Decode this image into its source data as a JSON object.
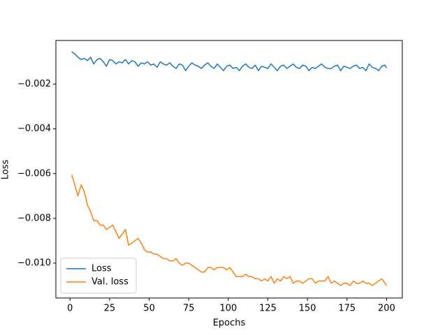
{
  "chart_data": {
    "type": "line",
    "xlabel": "Epochs",
    "ylabel": "Loss",
    "x": [
      1,
      3,
      5,
      7,
      9,
      11,
      13,
      15,
      17,
      19,
      21,
      23,
      25,
      27,
      29,
      31,
      33,
      35,
      37,
      39,
      41,
      43,
      45,
      47,
      49,
      51,
      53,
      55,
      57,
      59,
      61,
      63,
      65,
      67,
      69,
      71,
      73,
      75,
      77,
      79,
      81,
      83,
      85,
      87,
      89,
      91,
      93,
      95,
      97,
      99,
      101,
      103,
      105,
      107,
      109,
      111,
      113,
      115,
      117,
      119,
      121,
      123,
      125,
      127,
      129,
      131,
      133,
      135,
      137,
      139,
      141,
      143,
      145,
      147,
      149,
      151,
      153,
      155,
      157,
      159,
      161,
      163,
      165,
      167,
      169,
      171,
      173,
      175,
      177,
      179,
      181,
      183,
      185,
      187,
      189,
      191,
      193,
      195,
      197,
      199,
      200
    ],
    "series": [
      {
        "name": "Loss",
        "color": "#1f77b4",
        "values": [
          -0.00055,
          -0.00065,
          -0.0008,
          -0.0009,
          -0.00085,
          -0.00095,
          -0.0008,
          -0.0011,
          -0.0009,
          -0.00085,
          -0.001,
          -0.0012,
          -0.0009,
          -0.00095,
          -0.0011,
          -0.001,
          -0.00105,
          -0.0009,
          -0.0011,
          -0.00095,
          -0.001,
          -0.0012,
          -0.00105,
          -0.0011,
          -0.001,
          -0.00115,
          -0.0011,
          -0.00125,
          -0.001,
          -0.0011,
          -0.00115,
          -0.00105,
          -0.0012,
          -0.0013,
          -0.0011,
          -0.00115,
          -0.0014,
          -0.0012,
          -0.00105,
          -0.00115,
          -0.0012,
          -0.0013,
          -0.00115,
          -0.00105,
          -0.0012,
          -0.0013,
          -0.0011,
          -0.00125,
          -0.0014,
          -0.0012,
          -0.00115,
          -0.0013,
          -0.00125,
          -0.0014,
          -0.0012,
          -0.0011,
          -0.00125,
          -0.0013,
          -0.00115,
          -0.0014,
          -0.0012,
          -0.00125,
          -0.0013,
          -0.0011,
          -0.00125,
          -0.0014,
          -0.0012,
          -0.00115,
          -0.0013,
          -0.0012,
          -0.0011,
          -0.00125,
          -0.0013,
          -0.00115,
          -0.0012,
          -0.0014,
          -0.00125,
          -0.0013,
          -0.0012,
          -0.0011,
          -0.00125,
          -0.0013,
          -0.0013,
          -0.0012,
          -0.00115,
          -0.0014,
          -0.0012,
          -0.00125,
          -0.0013,
          -0.0012,
          -0.00115,
          -0.0013,
          -0.00125,
          -0.0014,
          -0.0011,
          -0.00125,
          -0.0013,
          -0.0014,
          -0.0012,
          -0.00115,
          -0.00128
        ]
      },
      {
        "name": "Val. loss",
        "color": "#ff7f0e",
        "values": [
          -0.00605,
          -0.0065,
          -0.007,
          -0.0065,
          -0.0068,
          -0.0074,
          -0.0077,
          -0.0081,
          -0.0081,
          -0.0083,
          -0.0083,
          -0.0085,
          -0.0084,
          -0.0083,
          -0.0086,
          -0.0089,
          -0.0087,
          -0.0085,
          -0.0092,
          -0.0091,
          -0.009,
          -0.0089,
          -0.0091,
          -0.0094,
          -0.0095,
          -0.0095,
          -0.0096,
          -0.0096,
          -0.0097,
          -0.0098,
          -0.0098,
          -0.0099,
          -0.0099,
          -0.0098,
          -0.01,
          -0.0101,
          -0.01,
          -0.01,
          -0.0101,
          -0.0102,
          -0.0103,
          -0.0104,
          -0.0104,
          -0.0102,
          -0.0102,
          -0.0103,
          -0.0102,
          -0.0102,
          -0.0102,
          -0.0103,
          -0.0102,
          -0.0104,
          -0.0106,
          -0.0106,
          -0.0106,
          -0.0105,
          -0.0106,
          -0.0106,
          -0.0107,
          -0.0107,
          -0.0108,
          -0.0107,
          -0.0108,
          -0.0106,
          -0.0109,
          -0.0107,
          -0.0108,
          -0.0106,
          -0.0107,
          -0.0106,
          -0.0109,
          -0.0108,
          -0.0108,
          -0.0109,
          -0.0108,
          -0.0107,
          -0.0107,
          -0.0109,
          -0.0108,
          -0.0108,
          -0.0108,
          -0.0106,
          -0.0109,
          -0.0108,
          -0.0109,
          -0.011,
          -0.0109,
          -0.0109,
          -0.011,
          -0.0108,
          -0.0109,
          -0.0109,
          -0.0108,
          -0.0109,
          -0.0109,
          -0.011,
          -0.0109,
          -0.0108,
          -0.0107,
          -0.0109,
          -0.011
        ]
      }
    ],
    "xlim": [
      -8.95,
      209.95
    ],
    "xticks": [
      0,
      25,
      50,
      75,
      100,
      125,
      150,
      175,
      200
    ],
    "ylim": [
      -0.01156,
      -5e-05
    ],
    "yticks": [
      {
        "value": -0.002,
        "label": "−0.002"
      },
      {
        "value": -0.004,
        "label": "−0.004"
      },
      {
        "value": -0.006,
        "label": "−0.006"
      },
      {
        "value": -0.008,
        "label": "−0.008"
      },
      {
        "value": -0.01,
        "label": "−0.010"
      }
    ],
    "legend": "lower left"
  }
}
